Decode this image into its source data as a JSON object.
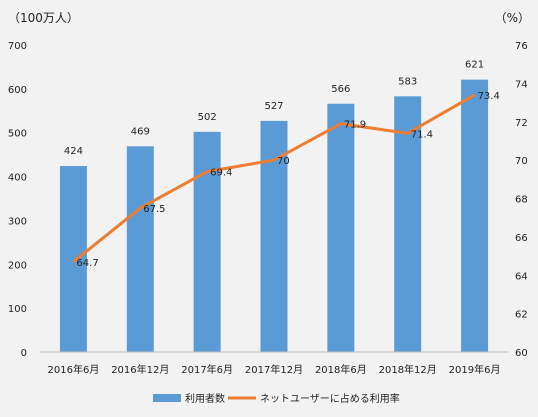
{
  "chart_data": {
    "type": "bar",
    "categories": [
      "2016年6月",
      "2016年12月",
      "2017年6月",
      "2017年12月",
      "2018年6月",
      "2018年12月",
      "2019年6月"
    ],
    "series": [
      {
        "name": "利用者数",
        "type": "bar",
        "axis": "left",
        "color": "#5b9bd5",
        "values": [
          424,
          469,
          502,
          527,
          566,
          583,
          621
        ],
        "labels": [
          "424",
          "469",
          "502",
          "527",
          "566",
          "583",
          "621"
        ]
      },
      {
        "name": "ネットユーザーに占める利用率",
        "type": "line",
        "axis": "right",
        "color": "#ed7d31",
        "values": [
          64.7,
          67.5,
          69.4,
          70,
          71.9,
          71.4,
          73.4
        ],
        "labels": [
          "64.7",
          "67.5",
          "69.4",
          "70",
          "71.9",
          "71.4",
          "73.4"
        ]
      }
    ],
    "left_axis": {
      "unit": "（100万人）",
      "min": 0,
      "max": 700,
      "ticks": [
        "0",
        "100",
        "200",
        "300",
        "400",
        "500",
        "600",
        "700"
      ]
    },
    "right_axis": {
      "unit": "（%）",
      "min": 60,
      "max": 76,
      "ticks": [
        "60",
        "62",
        "64",
        "66",
        "68",
        "70",
        "72",
        "74",
        "76"
      ]
    },
    "legend_position": "bottom",
    "grid": false
  }
}
